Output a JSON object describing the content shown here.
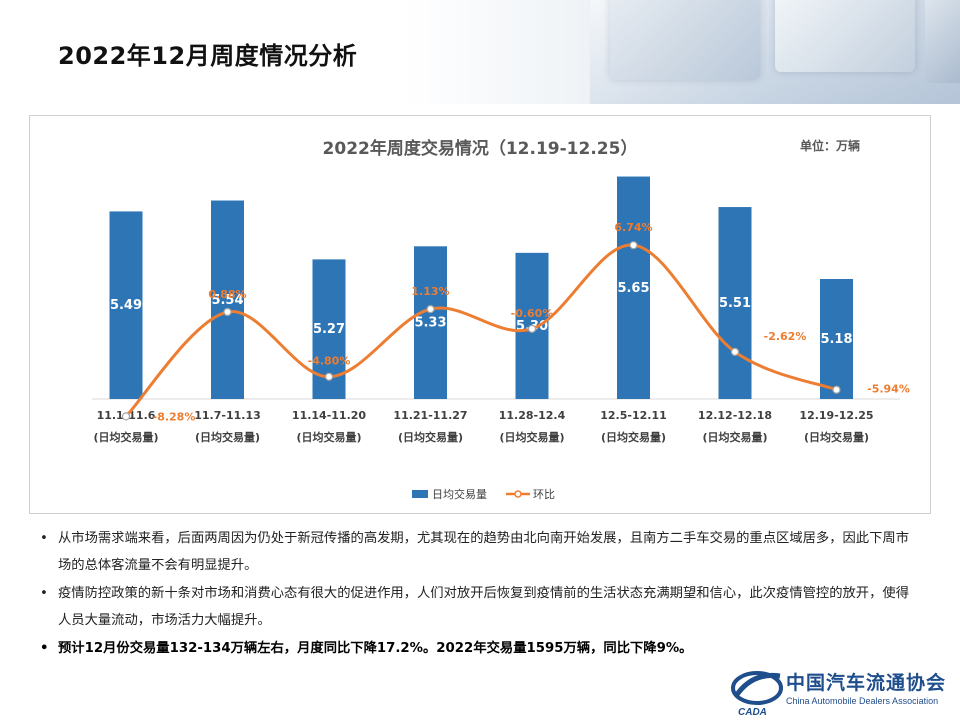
{
  "page_title": "2022年12月周度情况分析",
  "chart_data": {
    "type": "bar",
    "title": "2022年周度交易情况（12.19-12.25）",
    "unit": "单位：万辆",
    "categories": [
      "11.1-11.6",
      "11.7-11.13",
      "11.14-11.20",
      "11.21-11.27",
      "11.28-12.4",
      "12.5-12.11",
      "12.12-12.18",
      "12.19-12.25"
    ],
    "category_sub": "(日均交易量)",
    "series": [
      {
        "name": "日均交易量",
        "kind": "bar",
        "color": "#2e75b6",
        "values": [
          5.49,
          5.54,
          5.27,
          5.33,
          5.3,
          5.65,
          5.51,
          5.18
        ],
        "labels": [
          "5.49",
          "5.54",
          "5.27",
          "5.33",
          "5.30",
          "5.65",
          "5.51",
          "5.18"
        ]
      },
      {
        "name": "环比",
        "kind": "line",
        "color": "#ed7d31",
        "values": [
          -8.28,
          0.88,
          -4.8,
          1.13,
          -0.6,
          6.74,
          -2.62,
          -5.94
        ],
        "labels": [
          "-8.28%",
          "0.88%",
          "-4.80%",
          "1.13%",
          "-0.60%",
          "6.74%",
          "-2.62%",
          "-5.94%"
        ]
      }
    ],
    "legend": [
      "日均交易量",
      "环比"
    ],
    "legend_position": "bottom"
  },
  "bullets": [
    {
      "dot": "•",
      "text": "从市场需求端来看，后面两周因为仍处于新冠传播的高发期，尤其现在的趋势由北向南开始发展，且南方二手车交易的重点区域居多，因此下周市场的总体客流量不会有明显提升。",
      "bold": false
    },
    {
      "dot": "•",
      "text": "疫情防控政策的新十条对市场和消费心态有很大的促进作用，人们对放开后恢复到疫情前的生活状态充满期望和信心，此次疫情管控的放开，使得人员大量流动，市场活力大幅提升。",
      "bold": false
    },
    {
      "dot": "•",
      "text": "预计12月份交易量132-134万辆左右，月度同比下降17.2%。2022年交易量1595万辆，同比下降9%。",
      "bold": true
    }
  ],
  "logo": {
    "cn": "中国汽车流通协会",
    "en": "China Automobile Dealers Association",
    "mark": "CADA"
  }
}
